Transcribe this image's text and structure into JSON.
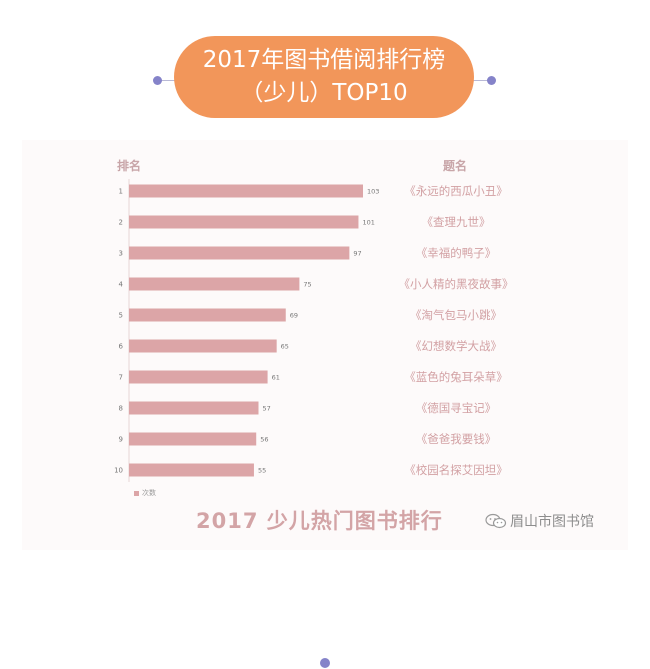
{
  "header": {
    "title_line1": "2017年图书借阅排行榜",
    "title_line2": "（少儿）TOP10",
    "pill_color": "#f2965a"
  },
  "chart_data": {
    "type": "bar",
    "orientation": "horizontal",
    "categories": [
      "1",
      "2",
      "3",
      "4",
      "5",
      "6",
      "7",
      "8",
      "9",
      "10"
    ],
    "book_titles": [
      "《永远的西瓜小丑》",
      "《查理九世》",
      "《幸福的鸭子》",
      "《小人精的黑夜故事》",
      "《淘气包马小跳》",
      "《幻想数学大战》",
      "《蓝色的兔耳朵草》",
      "《德国寻宝记》",
      "《爸爸我要钱》",
      "《校园名探艾因坦》"
    ],
    "values": [
      103,
      101,
      97,
      75,
      69,
      65,
      61,
      57,
      56,
      55
    ],
    "series": [
      {
        "name": "次数",
        "values": [
          103,
          101,
          97,
          75,
          69,
          65,
          61,
          57,
          56,
          55
        ]
      }
    ],
    "rank_header": "排名",
    "title_header": "题名",
    "bar_color": "#dca5a7",
    "xlim": [
      0,
      103
    ]
  },
  "footer": {
    "chart_caption": "2017 少儿热门图书排行",
    "wechat_account": "眉山市图书馆"
  }
}
